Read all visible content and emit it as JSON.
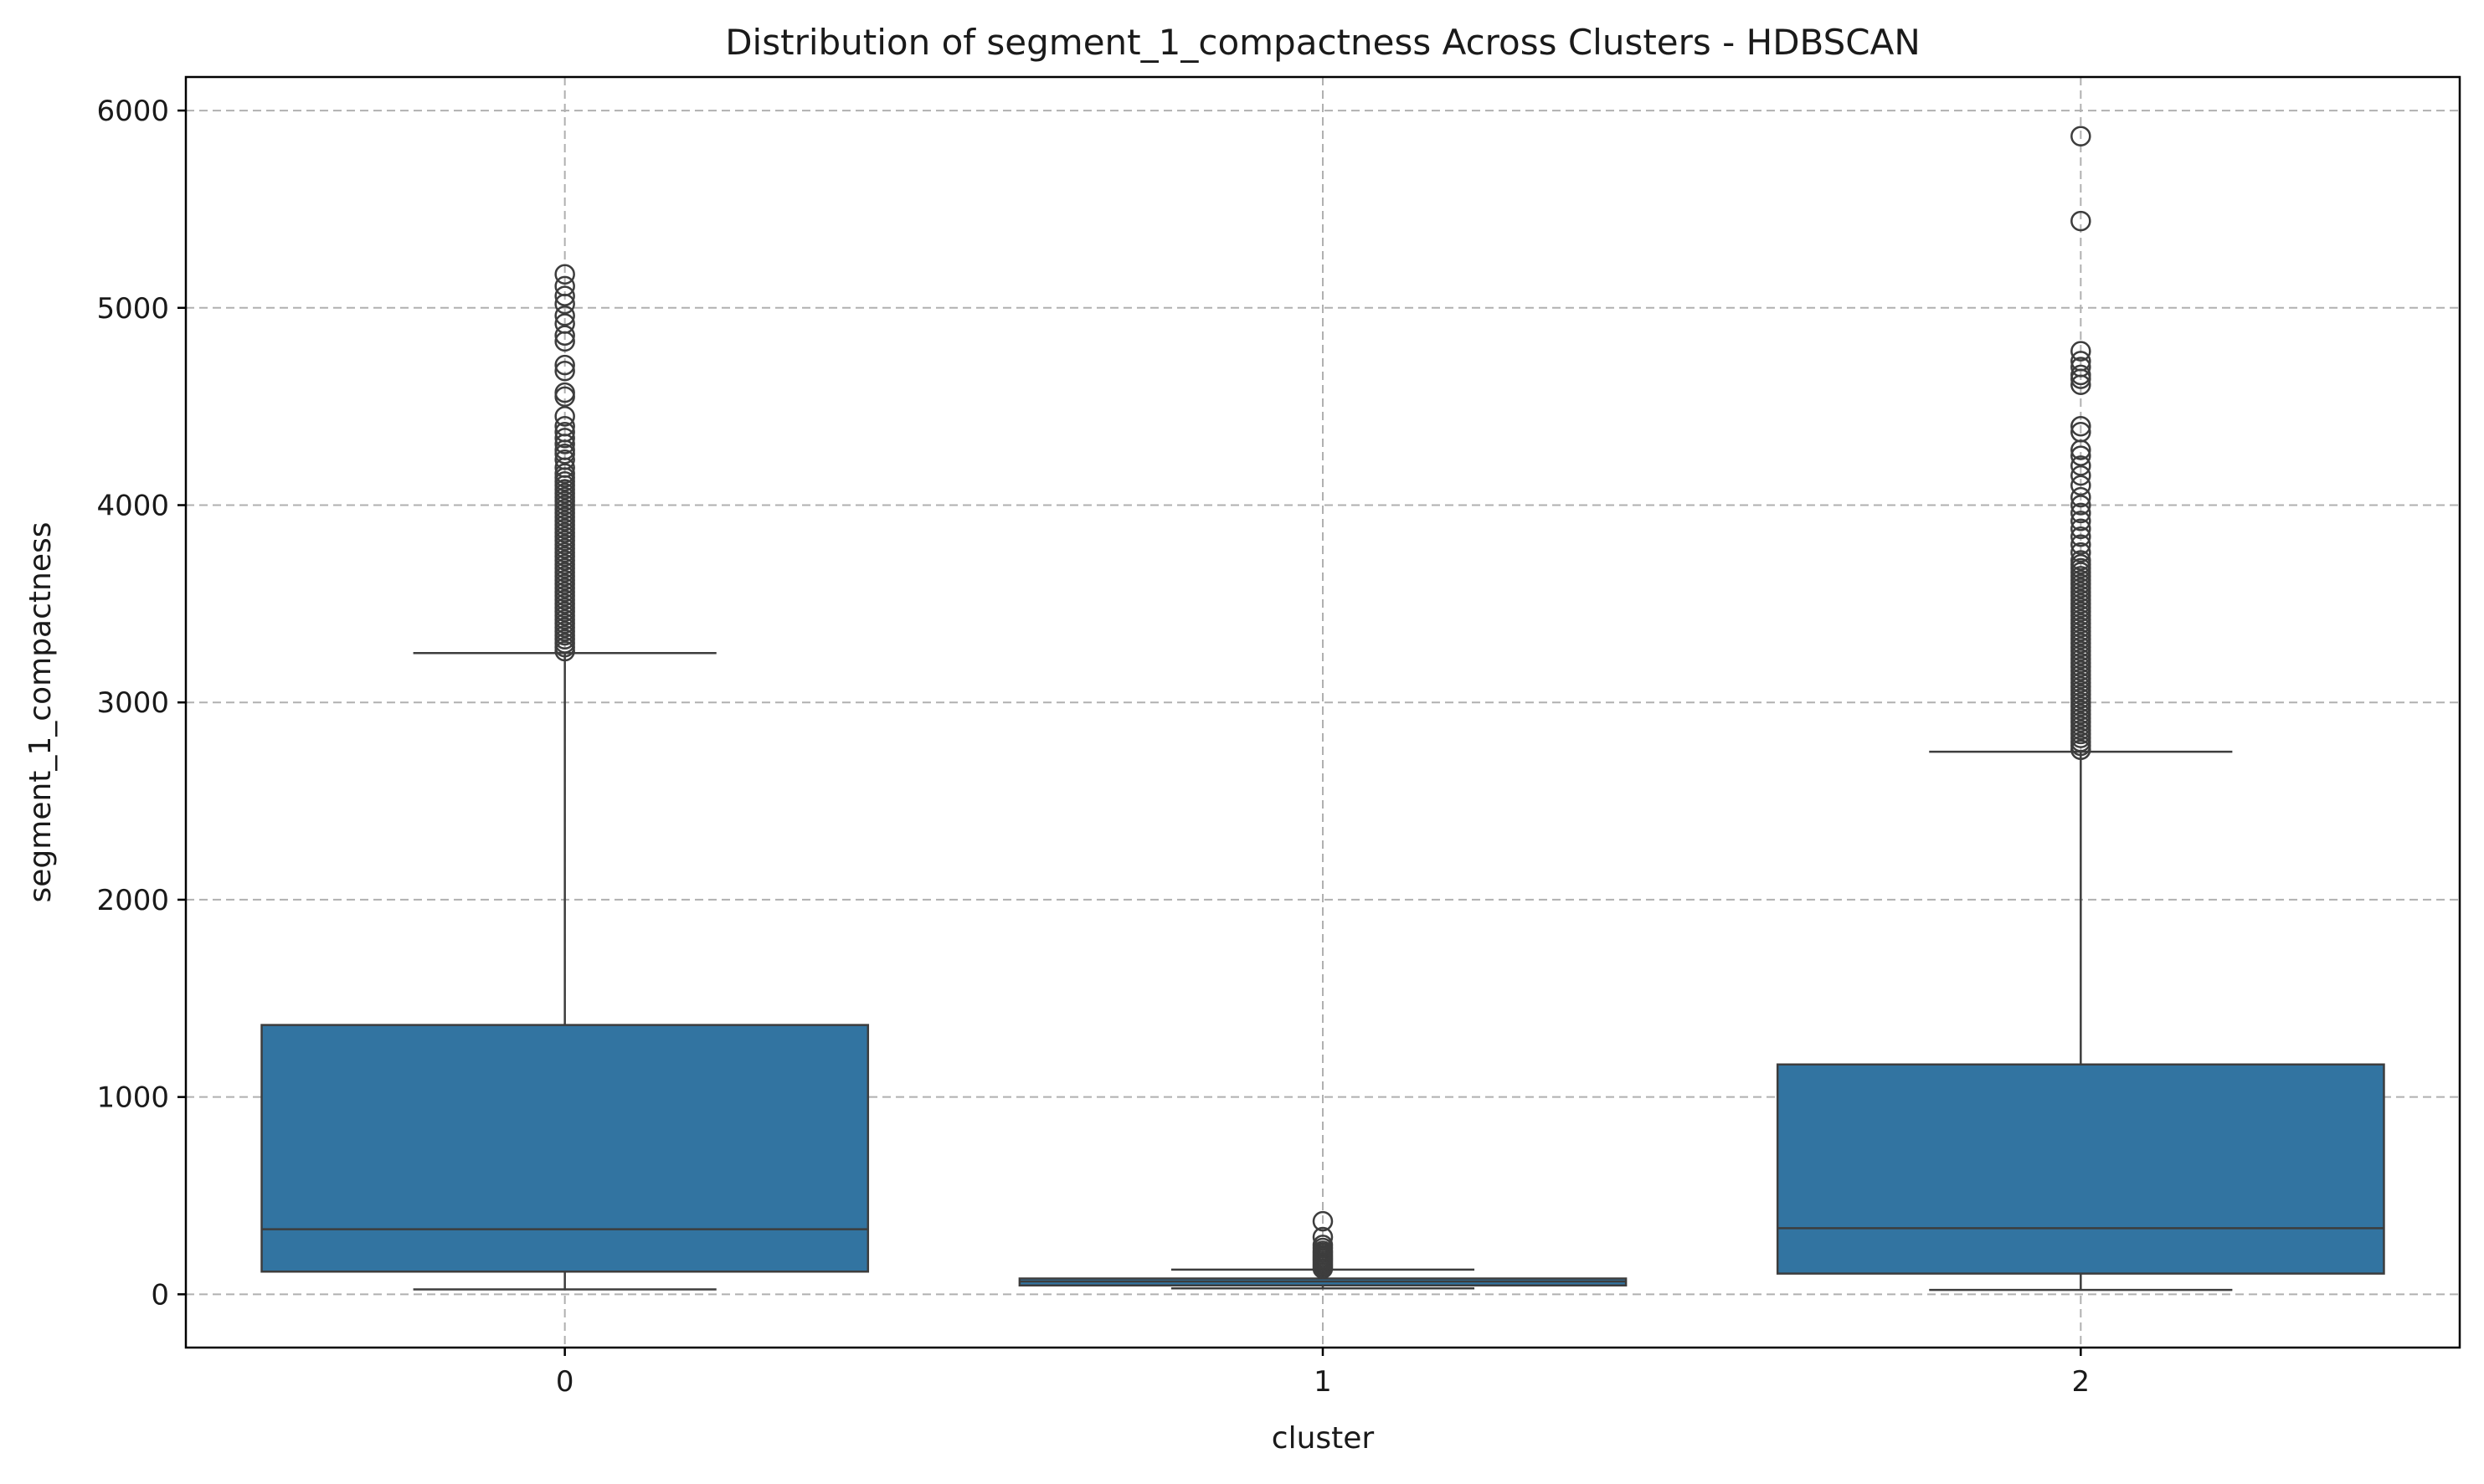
{
  "chart_data": {
    "type": "box",
    "title": "Distribution of segment_1_compactness Across Clusters - HDBSCAN",
    "xlabel": "cluster",
    "ylabel": "segment_1_compactness",
    "ylim": [
      -270,
      6170
    ],
    "y_ticks": [
      0,
      1000,
      2000,
      3000,
      4000,
      5000,
      6000
    ],
    "grid": true,
    "grid_style": "dashed",
    "box_color": "#3274a1",
    "line_color": "#3d3d3d",
    "categories": [
      "0",
      "1",
      "2"
    ],
    "boxes": [
      {
        "category": "0",
        "whisker_low": 25,
        "q1": 115,
        "median": 330,
        "q3": 1365,
        "whisker_high": 3250,
        "outliers": [
          3260,
          3280,
          3300,
          3320,
          3340,
          3360,
          3380,
          3400,
          3420,
          3440,
          3460,
          3480,
          3500,
          3520,
          3540,
          3560,
          3580,
          3600,
          3620,
          3640,
          3660,
          3680,
          3700,
          3720,
          3740,
          3760,
          3780,
          3800,
          3820,
          3840,
          3860,
          3880,
          3900,
          3920,
          3940,
          3960,
          3980,
          4000,
          4020,
          4040,
          4060,
          4080,
          4100,
          4120,
          4140,
          4160,
          4190,
          4230,
          4260,
          4280,
          4310,
          4340,
          4370,
          4400,
          4450,
          4550,
          4570,
          4680,
          4710,
          4830,
          4860,
          4920,
          4960,
          5020,
          5060,
          5110,
          5170
        ]
      },
      {
        "category": "1",
        "whisker_low": 30,
        "q1": 45,
        "median": 65,
        "q3": 80,
        "whisker_high": 125,
        "outliers": [
          130,
          140,
          150,
          160,
          170,
          180,
          190,
          200,
          210,
          220,
          235,
          250,
          290,
          370
        ]
      },
      {
        "category": "2",
        "whisker_low": 22,
        "q1": 105,
        "median": 335,
        "q3": 1165,
        "whisker_high": 2750,
        "outliers": [
          2760,
          2780,
          2800,
          2820,
          2840,
          2860,
          2880,
          2900,
          2920,
          2940,
          2960,
          2980,
          3000,
          3020,
          3040,
          3060,
          3080,
          3100,
          3120,
          3140,
          3160,
          3180,
          3200,
          3220,
          3240,
          3260,
          3280,
          3300,
          3320,
          3340,
          3360,
          3380,
          3400,
          3420,
          3440,
          3460,
          3480,
          3500,
          3520,
          3540,
          3560,
          3580,
          3600,
          3620,
          3640,
          3660,
          3680,
          3700,
          3720,
          3760,
          3800,
          3840,
          3880,
          3920,
          3960,
          4000,
          4040,
          4100,
          4150,
          4200,
          4250,
          4280,
          4370,
          4400,
          4610,
          4640,
          4660,
          4700,
          4730,
          4780,
          5440,
          5870
        ]
      }
    ]
  }
}
